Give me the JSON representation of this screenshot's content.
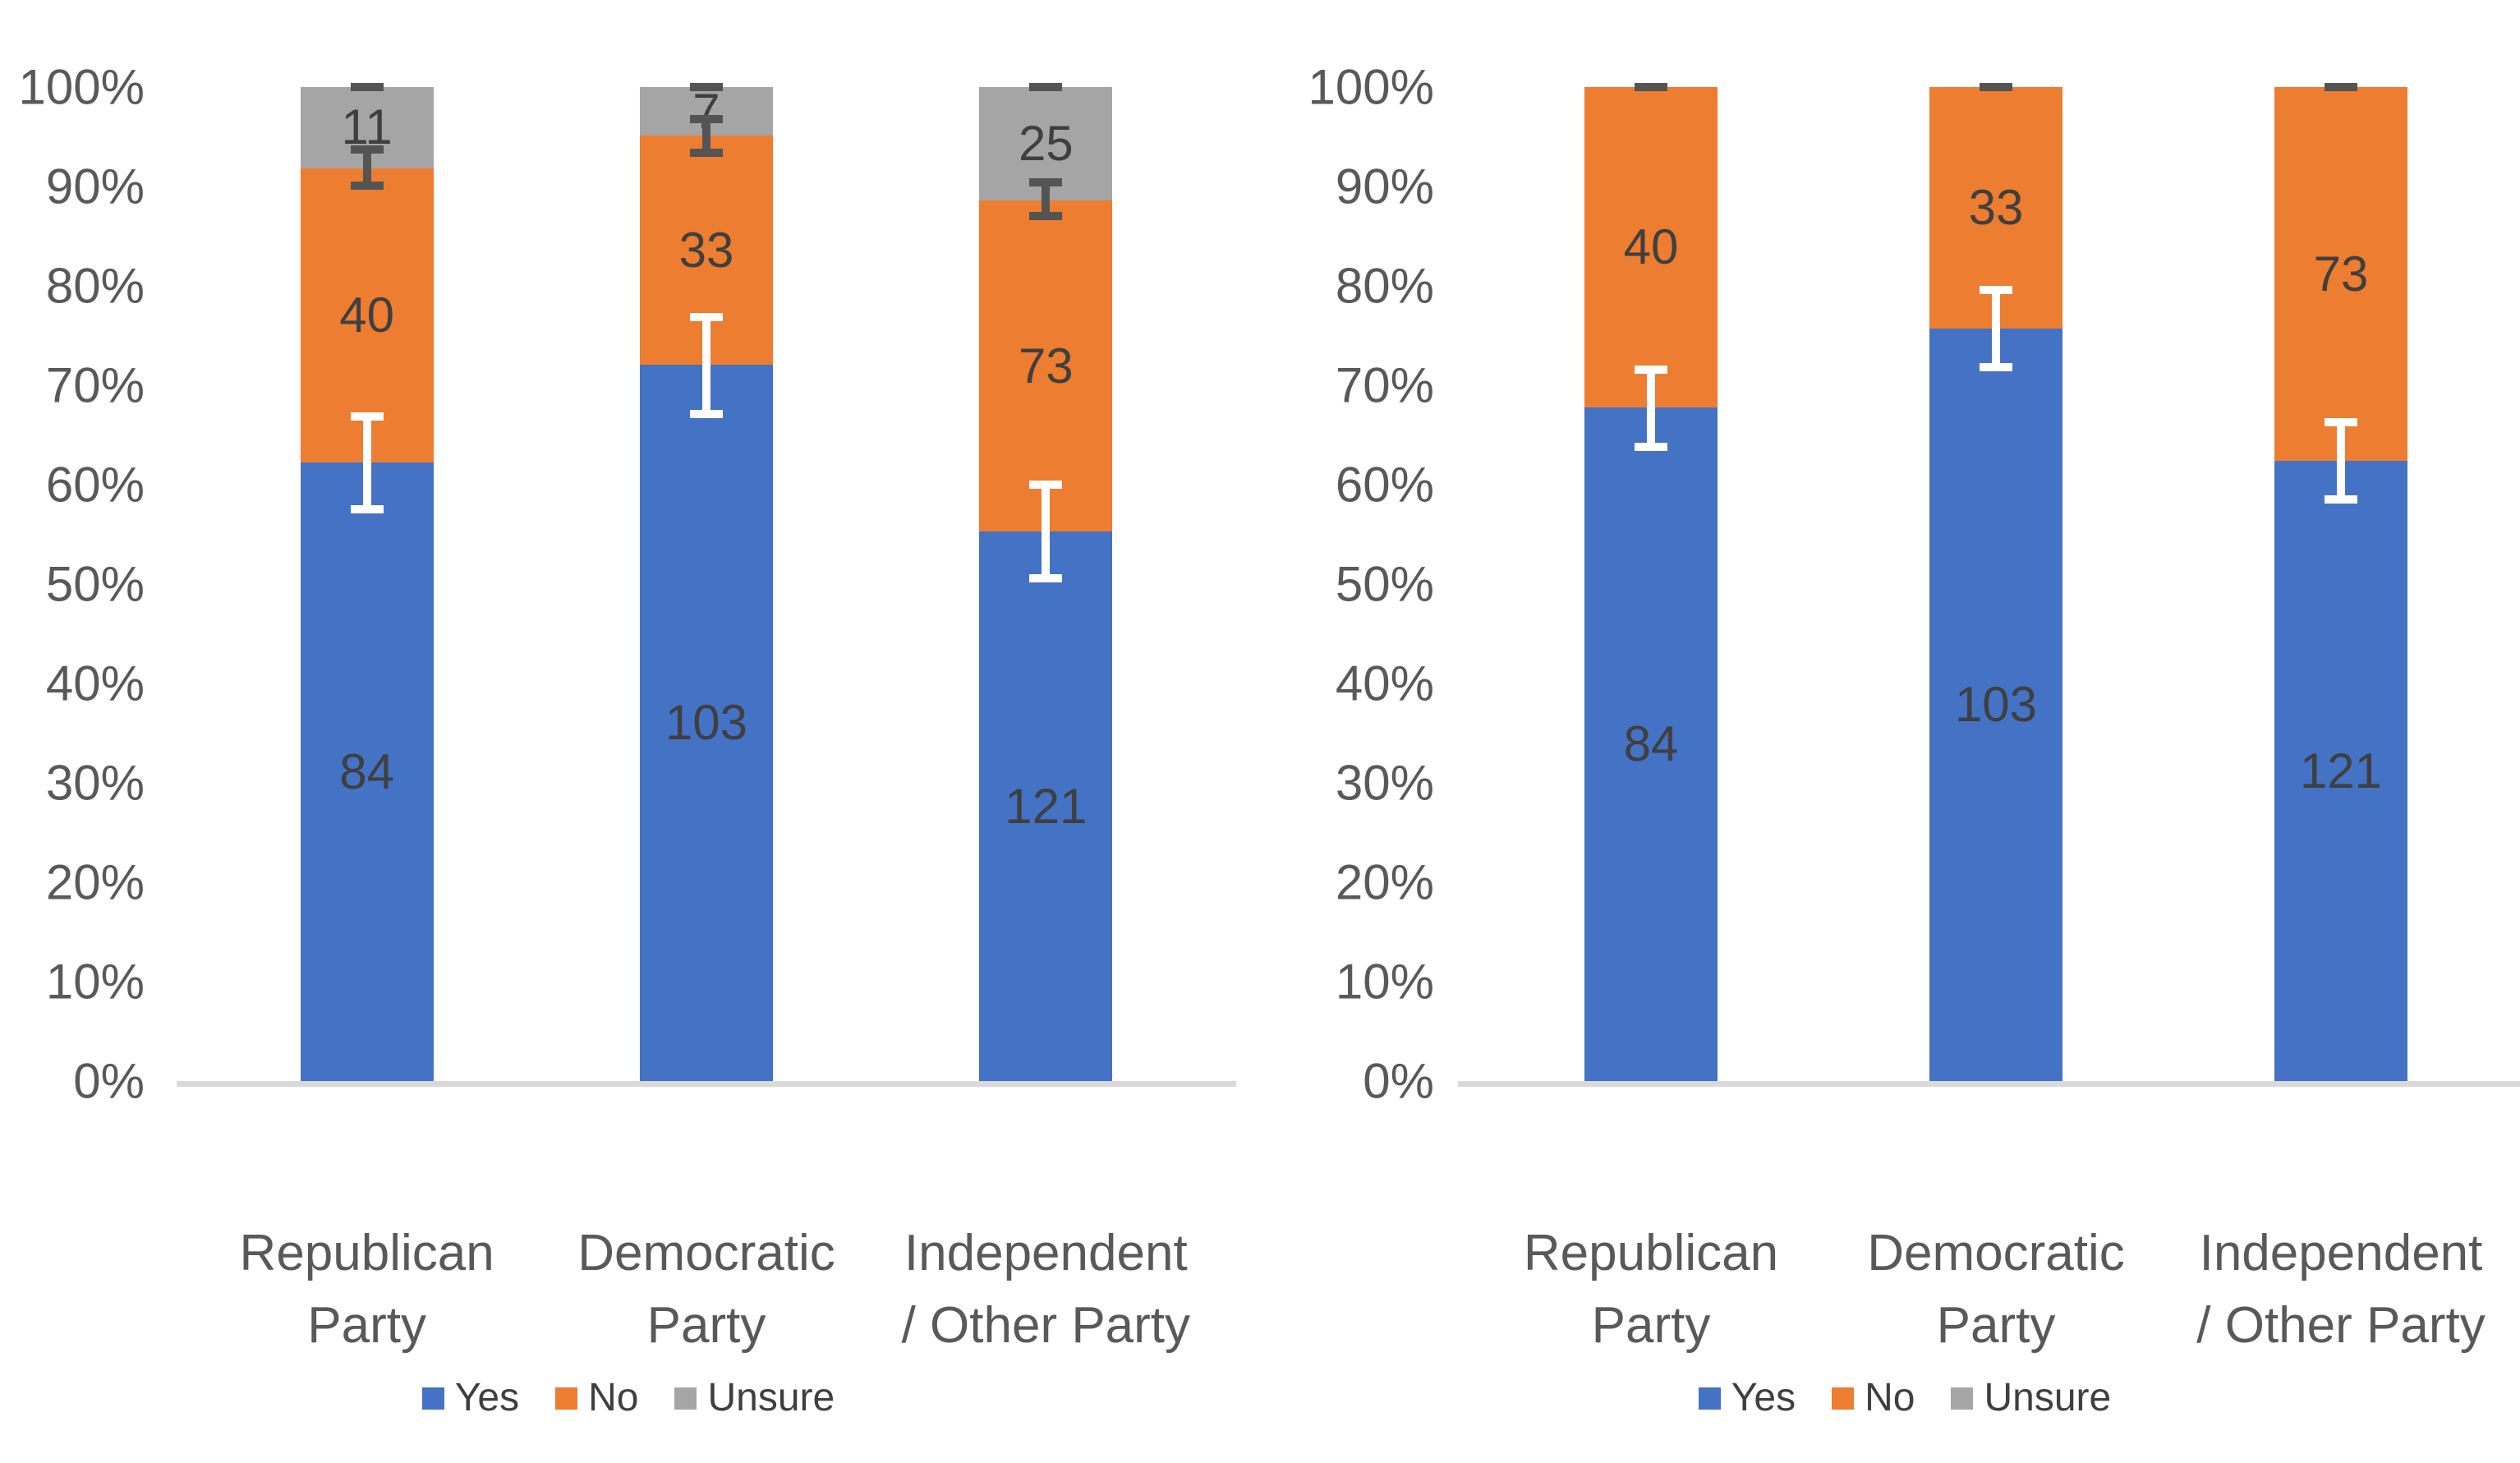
{
  "colors": {
    "yes": "#4472C4",
    "no": "#ED7D31",
    "unsure": "#A5A5A5",
    "error_dark": "#545454",
    "error_white": "#FFFFFF",
    "axis_line": "#D9D9D9",
    "tick_label": "#595959",
    "category_label": "#595959",
    "data_label": "#3F3F3F"
  },
  "legend": {
    "items": [
      {
        "label": "Yes",
        "color_key": "yes"
      },
      {
        "label": "No",
        "color_key": "no"
      },
      {
        "label": "Unsure",
        "color_key": "unsure"
      }
    ]
  },
  "chart_data": [
    {
      "type": "bar",
      "stacked": true,
      "units": "percent_of_total",
      "title": "",
      "xlabel": "",
      "ylabel": "",
      "ylim": [
        0,
        100
      ],
      "grid": false,
      "legend_position": "bottom",
      "y_ticks": [
        "100%",
        "90%",
        "80%",
        "70%",
        "60%",
        "50%",
        "40%",
        "30%",
        "20%",
        "10%",
        "0%"
      ],
      "categories": [
        "Republican Party",
        "Democratic Party",
        "Independent / Other Party"
      ],
      "category_lines": [
        [
          "Republican",
          "Party"
        ],
        [
          "Democratic",
          "Party"
        ],
        [
          "Independent",
          "/ Other Party"
        ]
      ],
      "series": [
        {
          "name": "Yes",
          "color_key": "yes",
          "values": [
            84,
            103,
            121
          ]
        },
        {
          "name": "No",
          "color_key": "no",
          "values": [
            40,
            33,
            73
          ]
        },
        {
          "name": "Unsure",
          "color_key": "unsure",
          "values": [
            11,
            7,
            25
          ]
        }
      ],
      "error_bars": [
        {
          "bar": 0,
          "at": "yes-boundary",
          "low": 57.5,
          "high": 66.9,
          "style": "white"
        },
        {
          "bar": 0,
          "at": "yes-no-boundary",
          "low": 90.1,
          "high": 93.7,
          "style": "dark"
        },
        {
          "bar": 0,
          "at": "top",
          "low": 100,
          "high": 100,
          "style": "dark"
        },
        {
          "bar": 1,
          "at": "yes-boundary",
          "low": 67.1,
          "high": 76.9,
          "style": "white"
        },
        {
          "bar": 1,
          "at": "yes-no-boundary",
          "low": 93.4,
          "high": 96.8,
          "style": "dark"
        },
        {
          "bar": 1,
          "at": "top",
          "low": 100,
          "high": 100,
          "style": "dark"
        },
        {
          "bar": 2,
          "at": "yes-boundary",
          "low": 50.6,
          "high": 60.0,
          "style": "white"
        },
        {
          "bar": 2,
          "at": "yes-no-boundary",
          "low": 87.0,
          "high": 90.4,
          "style": "dark"
        },
        {
          "bar": 2,
          "at": "top",
          "low": 100,
          "high": 100,
          "style": "dark"
        }
      ]
    },
    {
      "type": "bar",
      "stacked": true,
      "units": "percent_of_total_excluding_unsure",
      "title": "",
      "xlabel": "",
      "ylabel": "",
      "ylim": [
        0,
        100
      ],
      "grid": false,
      "legend_position": "bottom",
      "y_ticks": [
        "100%",
        "90%",
        "80%",
        "70%",
        "60%",
        "50%",
        "40%",
        "30%",
        "20%",
        "10%",
        "0%"
      ],
      "categories": [
        "Republican Party",
        "Democratic Party",
        "Independent / Other Party"
      ],
      "category_lines": [
        [
          "Republican",
          "Party"
        ],
        [
          "Democratic",
          "Party"
        ],
        [
          "Independent",
          "/ Other Party"
        ]
      ],
      "series": [
        {
          "name": "Yes",
          "color_key": "yes",
          "values": [
            84,
            103,
            121
          ]
        },
        {
          "name": "No",
          "color_key": "no",
          "values": [
            40,
            33,
            73
          ]
        }
      ],
      "error_bars": [
        {
          "bar": 0,
          "at": "yes-boundary",
          "low": 63.8,
          "high": 71.6,
          "style": "white"
        },
        {
          "bar": 0,
          "at": "top",
          "low": 100,
          "high": 100,
          "style": "dark"
        },
        {
          "bar": 1,
          "at": "yes-boundary",
          "low": 71.8,
          "high": 79.6,
          "style": "white"
        },
        {
          "bar": 1,
          "at": "top",
          "low": 100,
          "high": 100,
          "style": "dark"
        },
        {
          "bar": 2,
          "at": "yes-boundary",
          "low": 58.5,
          "high": 66.3,
          "style": "white"
        },
        {
          "bar": 2,
          "at": "top",
          "low": 100,
          "high": 100,
          "style": "dark"
        }
      ]
    }
  ]
}
